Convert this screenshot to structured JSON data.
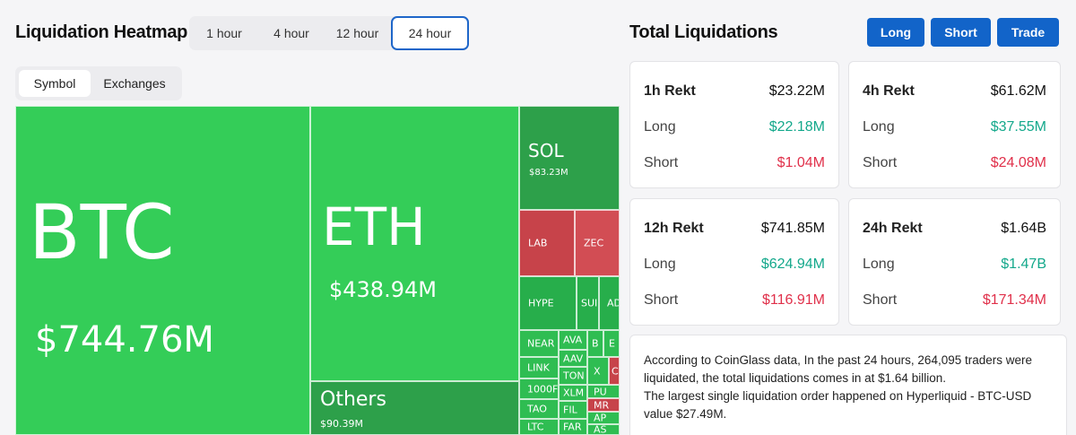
{
  "heatmap": {
    "title": "Liquidation Heatmap",
    "timeframes": [
      "1 hour",
      "4 hour",
      "12 hour",
      "24 hour"
    ],
    "active_timeframe": "24 hour",
    "group_tabs": [
      "Symbol",
      "Exchanges"
    ],
    "active_group": "Symbol",
    "tiles": {
      "btc": {
        "symbol": "BTC",
        "value": "$744.76M"
      },
      "eth": {
        "symbol": "ETH",
        "value": "$438.94M"
      },
      "sol": {
        "symbol": "SOL",
        "value": "$83.23M"
      },
      "others": {
        "symbol": "Others",
        "value": "$90.39M"
      },
      "lab": "LAB",
      "zec": "ZEC",
      "hype": "HYPE",
      "sui": "SUI",
      "ad": "AD",
      "near": "NEAR",
      "link": "LINK",
      "k1000": "1000F",
      "tao": "TAO",
      "ltc": "LTC",
      "ava": "AVA",
      "aav": "AAV",
      "ton": "TON",
      "xlm": "XLM",
      "fil": "FIL",
      "far": "FAR",
      "b": "B",
      "e": "E",
      "x": "X",
      "c": "C",
      "pu": "PU",
      "mr": "MR",
      "ap": "AP",
      "as": "AS"
    },
    "colors": {
      "strong_green": "#34cd58",
      "green": "#2fbd52",
      "dark_green": "#2da04a",
      "red": "#c7434a"
    }
  },
  "totals": {
    "title": "Total Liquidations",
    "buttons": [
      "Long",
      "Short",
      "Trade"
    ],
    "cards": [
      {
        "title": "1h Rekt",
        "total": "$23.22M",
        "long_label": "Long",
        "long": "$22.18M",
        "short_label": "Short",
        "short": "$1.04M"
      },
      {
        "title": "4h Rekt",
        "total": "$61.62M",
        "long_label": "Long",
        "long": "$37.55M",
        "short_label": "Short",
        "short": "$24.08M"
      },
      {
        "title": "12h Rekt",
        "total": "$741.85M",
        "long_label": "Long",
        "long": "$624.94M",
        "short_label": "Short",
        "short": "$116.91M"
      },
      {
        "title": "24h Rekt",
        "total": "$1.64B",
        "long_label": "Long",
        "long": "$1.47B",
        "short_label": "Short",
        "short": "$171.34M"
      }
    ],
    "summary_line1": "According to CoinGlass data, In the past 24 hours, 264,095 traders were liquidated, the total liquidations comes in at $1.64 billion.",
    "summary_line2": "The largest single liquidation order happened on Hyperliquid - BTC-USD value $27.49M.",
    "colors": {
      "button": "#1264c9",
      "long": "#13a88b",
      "short": "#e0304a"
    }
  }
}
